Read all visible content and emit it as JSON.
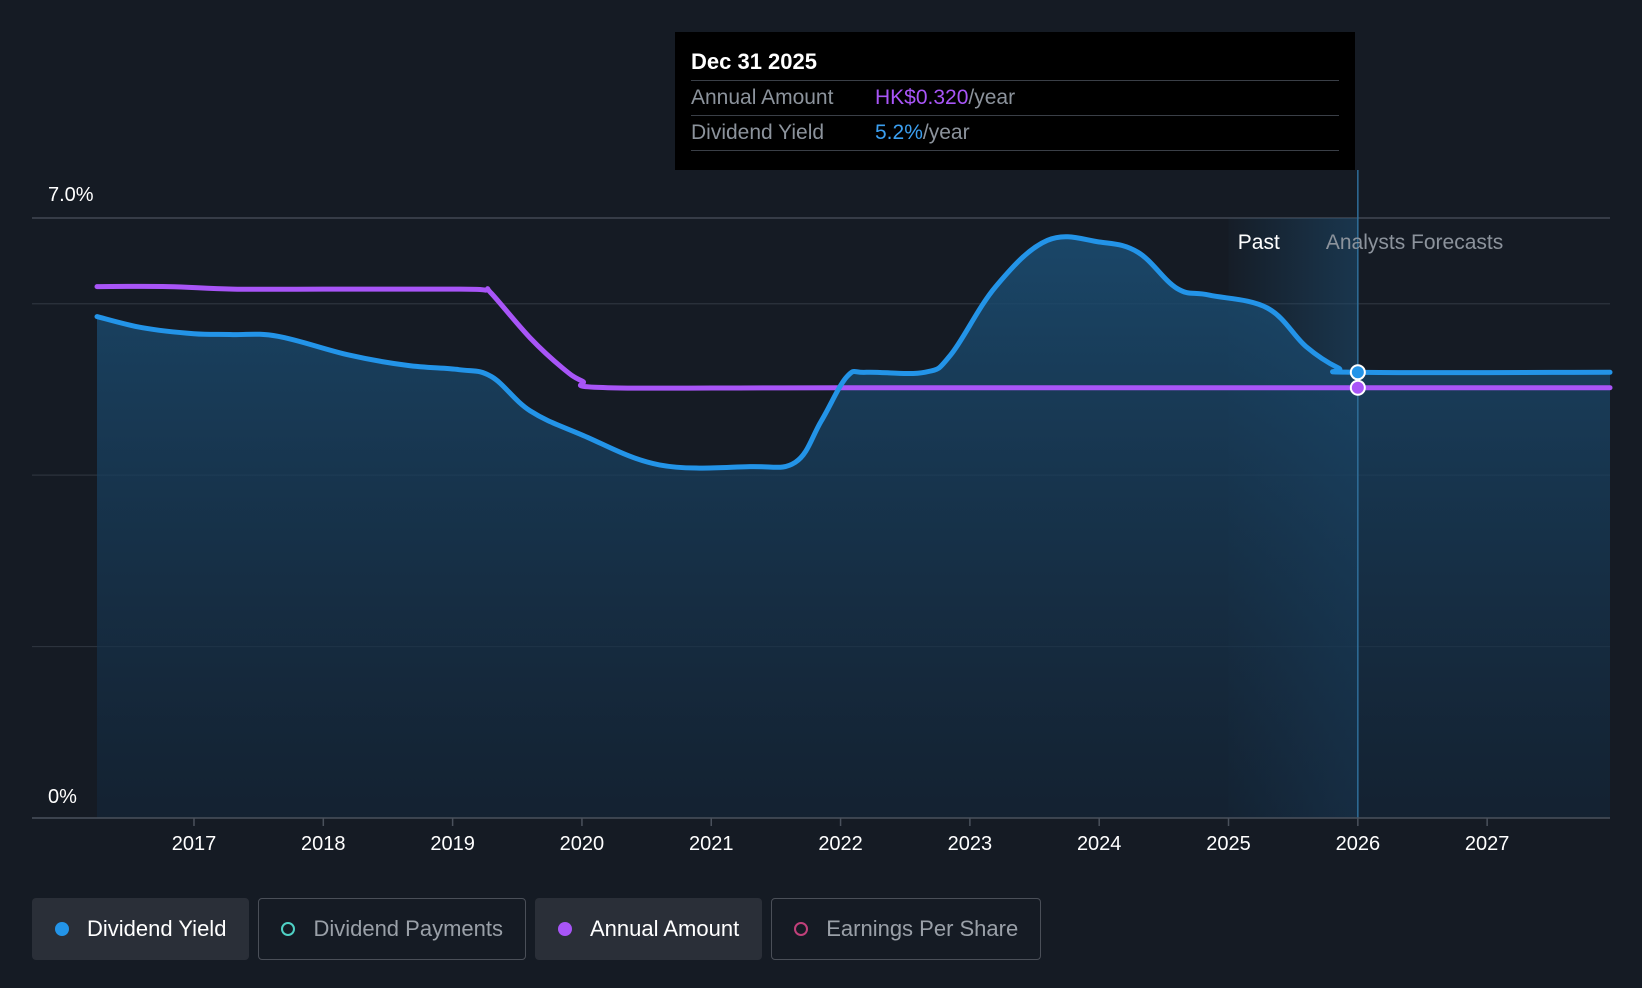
{
  "tooltip": {
    "date": "Dec 31 2025",
    "annual_amount_label": "Annual Amount",
    "annual_amount_value": "HK$0.320",
    "annual_amount_unit": "/year",
    "dividend_yield_label": "Dividend Yield",
    "dividend_yield_value": "5.2%",
    "dividend_yield_unit": "/year"
  },
  "regions": {
    "past_label": "Past",
    "forecast_label": "Analysts Forecasts"
  },
  "legend": [
    {
      "label": "Dividend Yield",
      "active": true,
      "color": "#2394e8",
      "style": "filled"
    },
    {
      "label": "Dividend Payments",
      "active": false,
      "color": "#4fd1c5",
      "style": "ring"
    },
    {
      "label": "Annual Amount",
      "active": true,
      "color": "#a855f7",
      "style": "filled"
    },
    {
      "label": "Earnings Per Share",
      "active": false,
      "color": "#c0407a",
      "style": "ring"
    }
  ],
  "colors": {
    "background": "#151b24",
    "yield": "#2394e8",
    "annual": "#a855f7",
    "grid": "#2c333d"
  },
  "chart_data": {
    "type": "area",
    "y_tick_labels": [
      "7.0%",
      "0%"
    ],
    "ylim": [
      0,
      7.0
    ],
    "xlim": [
      2016.25,
      2027.95
    ],
    "x_tick_labels": [
      "2017",
      "2018",
      "2019",
      "2020",
      "2021",
      "2022",
      "2023",
      "2024",
      "2025",
      "2026",
      "2027"
    ],
    "x_ticks": [
      2017,
      2018,
      2019,
      2020,
      2021,
      2022,
      2023,
      2024,
      2025,
      2026,
      2027
    ],
    "grid": true,
    "past_forecast_boundary": 2026.0,
    "highlight_band_start": 2025.0,
    "series": [
      {
        "name": "Dividend Yield",
        "unit": "%",
        "color": "#2394e8",
        "fill": true,
        "x": [
          2016.25,
          2016.6,
          2017.0,
          2017.3,
          2017.65,
          2018.2,
          2018.65,
          2019.05,
          2019.3,
          2019.6,
          2020.0,
          2020.6,
          2021.3,
          2021.65,
          2021.85,
          2022.05,
          2022.2,
          2022.65,
          2022.85,
          2023.2,
          2023.6,
          2024.0,
          2024.3,
          2024.6,
          2024.85,
          2025.3,
          2025.6,
          2025.85,
          2026.0,
          2027.95
        ],
        "values": [
          5.85,
          5.72,
          5.65,
          5.64,
          5.62,
          5.4,
          5.28,
          5.23,
          5.15,
          4.75,
          4.47,
          4.12,
          4.1,
          4.15,
          4.63,
          5.15,
          5.2,
          5.2,
          5.4,
          6.2,
          6.74,
          6.72,
          6.6,
          6.18,
          6.1,
          5.95,
          5.5,
          5.25,
          5.2,
          5.2
        ]
      },
      {
        "name": "Annual Amount",
        "color": "#a855f7",
        "fill": false,
        "x": [
          2016.25,
          2016.8,
          2017.3,
          2018.0,
          2019.0,
          2019.25,
          2019.3,
          2019.6,
          2019.85,
          2020.0,
          2020.2,
          2022.0,
          2026.0,
          2027.95
        ],
        "values": [
          6.2,
          6.2,
          6.17,
          6.17,
          6.17,
          6.16,
          6.12,
          5.6,
          5.25,
          5.1,
          5.02,
          5.02,
          5.02,
          5.02
        ]
      }
    ],
    "tooltip_points": {
      "x": 2026.0,
      "yield": 5.2,
      "annual": 5.02
    }
  }
}
